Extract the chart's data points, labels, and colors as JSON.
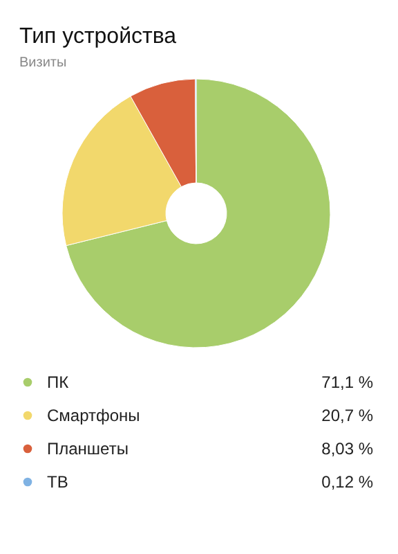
{
  "chart_data": {
    "type": "donut",
    "title": "Тип устройства",
    "subtitle": "Визиты",
    "legend": "bottom",
    "categories": [
      "ПК",
      "Смартфоны",
      "Планшеты",
      "ТВ"
    ],
    "values": [
      71.1,
      20.7,
      8.03,
      0.12
    ],
    "colors": [
      "#a8cd6b",
      "#f2d86c",
      "#d9603c",
      "#7fb2e3"
    ],
    "value_labels": [
      "71,1 %",
      "20,7 %",
      "8,03 %",
      "0,12 %"
    ]
  }
}
